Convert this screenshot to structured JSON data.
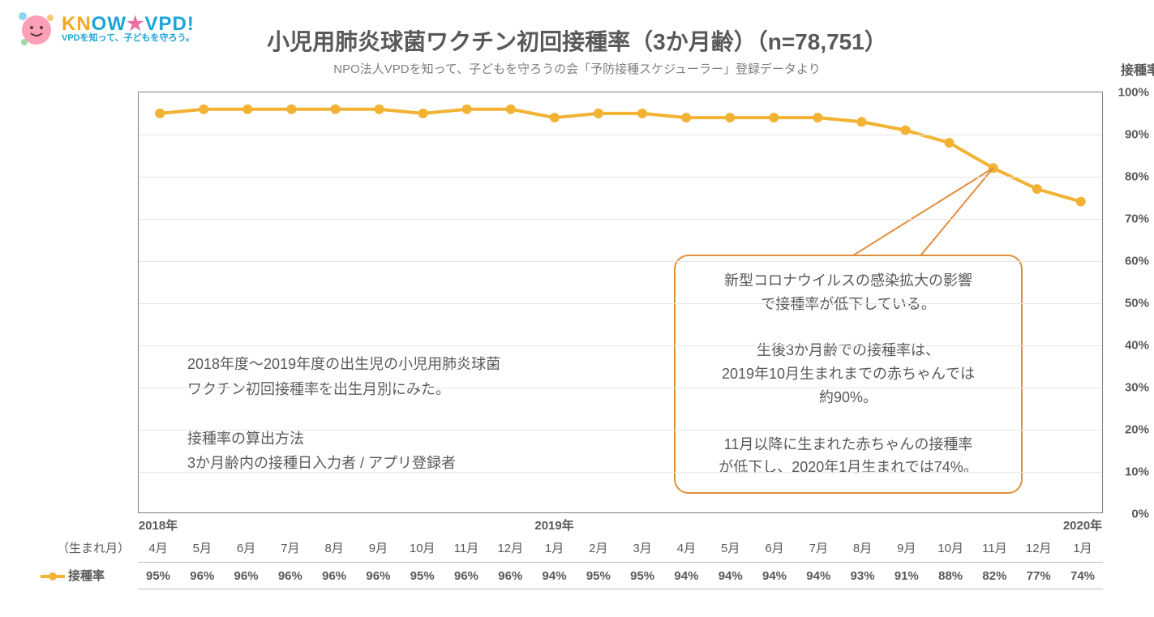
{
  "logo": {
    "main_k": "KN",
    "main_ow": "OW",
    "star": "★",
    "main_vpd": "VPD!",
    "sub": "VPDを知って、子どもを守ろう。"
  },
  "title": "小児用肺炎球菌ワクチン初回接種率（3か月齢）（n=78,751）",
  "subtitle": "NPO法人VPDを知って、子どもを守ろうの会「予防接種スケジューラー」登録データより",
  "y_axis_title": "接種率",
  "x_row_label": "（生まれ月）",
  "legend_label": "接種率",
  "chart": {
    "type": "line",
    "ylim": [
      0,
      100
    ],
    "ytick_step": 10,
    "line_color": "#f2b233",
    "line_width": 4,
    "marker_radius": 6,
    "grid_color": "#e6e6e6",
    "border_color": "#808080",
    "background_color": "#ffffff",
    "title_fontsize": 28,
    "label_fontsize": 15,
    "points": [
      {
        "year": "2018年",
        "month": "4月",
        "value": 95
      },
      {
        "year": "",
        "month": "5月",
        "value": 96
      },
      {
        "year": "",
        "month": "6月",
        "value": 96
      },
      {
        "year": "",
        "month": "7月",
        "value": 96
      },
      {
        "year": "",
        "month": "8月",
        "value": 96
      },
      {
        "year": "",
        "month": "9月",
        "value": 96
      },
      {
        "year": "",
        "month": "10月",
        "value": 95
      },
      {
        "year": "",
        "month": "11月",
        "value": 96
      },
      {
        "year": "",
        "month": "12月",
        "value": 96
      },
      {
        "year": "2019年",
        "month": "1月",
        "value": 94
      },
      {
        "year": "",
        "month": "2月",
        "value": 95
      },
      {
        "year": "",
        "month": "3月",
        "value": 95
      },
      {
        "year": "",
        "month": "4月",
        "value": 94
      },
      {
        "year": "",
        "month": "5月",
        "value": 94
      },
      {
        "year": "",
        "month": "6月",
        "value": 94
      },
      {
        "year": "",
        "month": "7月",
        "value": 94
      },
      {
        "year": "",
        "month": "8月",
        "value": 93
      },
      {
        "year": "",
        "month": "9月",
        "value": 91
      },
      {
        "year": "",
        "month": "10月",
        "value": 88
      },
      {
        "year": "",
        "month": "11月",
        "value": 82
      },
      {
        "year": "",
        "month": "12月",
        "value": 77
      },
      {
        "year": "2020年",
        "month": "1月",
        "value": 74
      }
    ]
  },
  "textbox_left": {
    "line1": "2018年度～2019年度の出生児の小児用肺炎球菌",
    "line2": "ワクチン初回接種率を出生月別にみた。",
    "line3": "",
    "line4": "接種率の算出方法",
    "line5": "3か月齢内の接種日入力者 / アプリ登録者"
  },
  "callout": {
    "line1": "新型コロナウイルスの感染拡大の影響",
    "line2": "で接種率が低下している。",
    "line3": "",
    "line4": "生後3か月齢での接種率は、",
    "line5": "2019年10月生まれまでの赤ちゃんでは",
    "line6": "約90%。",
    "line7": "",
    "line8": "11月以降に生まれた赤ちゃんの接種率",
    "line9": "が低下し、2020年1月生まれでは74%。",
    "border_color": "#e08e3c",
    "tail_target_index": 19
  }
}
